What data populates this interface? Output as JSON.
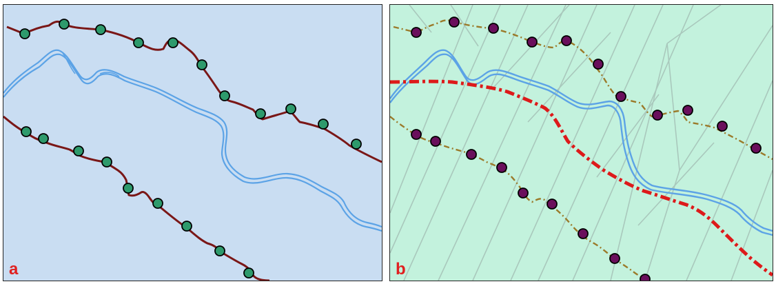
{
  "panels": [
    {
      "label": "a",
      "background": "#c9ddf2"
    },
    {
      "label": "b",
      "background": "#c3f2dd"
    }
  ],
  "colors": {
    "river": "#5ca3e6",
    "boundary_line": "#7a1717",
    "marker_green": "#2e9a6c",
    "marker_purple": "#6a0f5c",
    "dashed_line": "#9b7a2a",
    "centerline": "#dd1a1a",
    "thiessen_lines": "#a9c8bc",
    "label": "#e02020"
  }
}
